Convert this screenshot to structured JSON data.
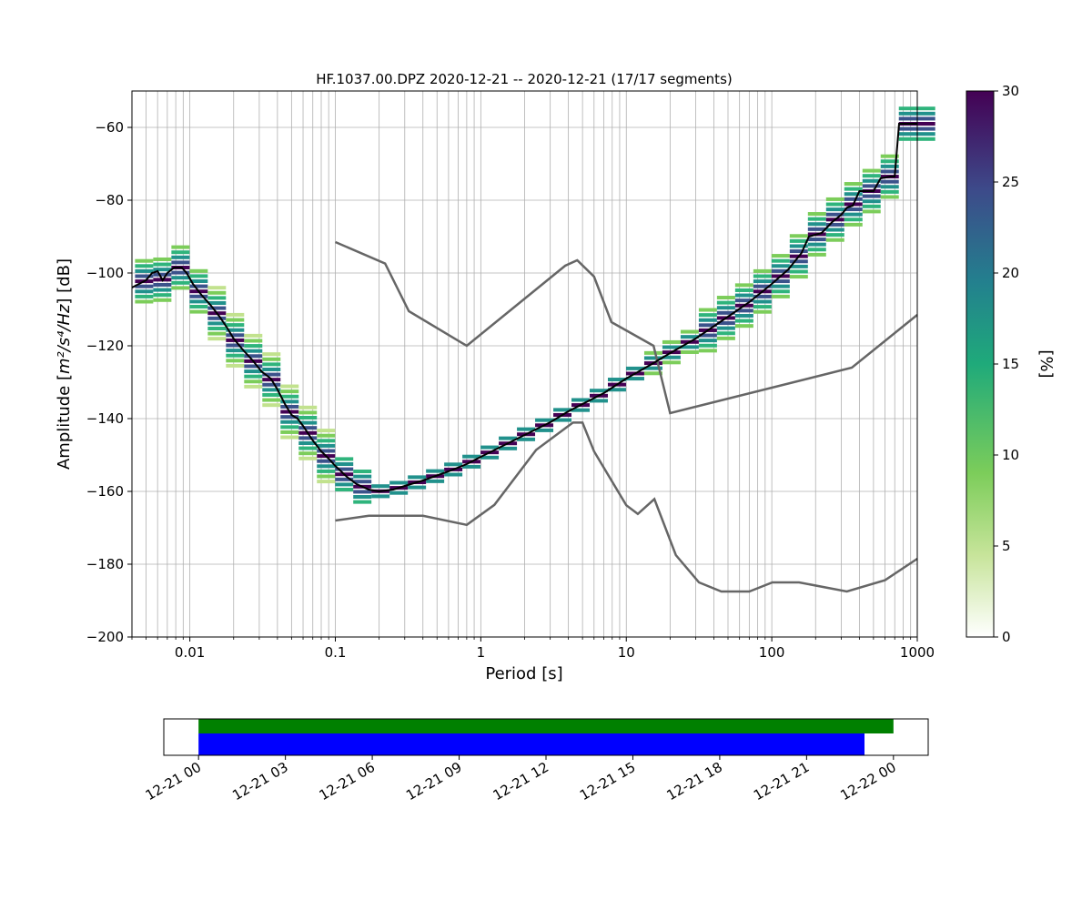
{
  "title": "HF.1037.00.DPZ   2020-12-21 -- 2020-12-21  (17/17 segments)",
  "chart_data": [
    {
      "type": "heatmap",
      "title": "HF.1037.00.DPZ   2020-12-21 -- 2020-12-21  (17/17 segments)",
      "xlabel": "Period [s]",
      "ylabel_prefix": "Amplitude [",
      "ylabel_unit": "m²/s⁴/Hz",
      "ylabel_suffix": "] [dB]",
      "x_scale": "log",
      "xlim": [
        0.004,
        1000
      ],
      "ylim": [
        -200,
        -50
      ],
      "x_tick_labels": [
        "0.01",
        "0.1",
        "1",
        "10",
        "100",
        "1000"
      ],
      "y_tick_labels": [
        "−200",
        "−180",
        "−160",
        "−140",
        "−120",
        "−100",
        "−80",
        "−60"
      ],
      "y_ticks": [
        -200,
        -180,
        -160,
        -140,
        -120,
        -100,
        -80,
        -60
      ],
      "grid": true,
      "colorbar": {
        "label": "[%]",
        "range": [
          0,
          30
        ],
        "tick_labels": [
          "0",
          "5",
          "10",
          "15",
          "20",
          "25",
          "30"
        ],
        "colormap": "viridis_r-like (white → light green → green → teal → blue → dark purple)"
      },
      "mean_curve": {
        "color": "#000000",
        "points": [
          [
            0.004,
            -104
          ],
          [
            0.005,
            -102
          ],
          [
            0.0055,
            -100
          ],
          [
            0.006,
            -99.5
          ],
          [
            0.0065,
            -102
          ],
          [
            0.007,
            -100
          ],
          [
            0.0078,
            -98.5
          ],
          [
            0.0088,
            -98.5
          ],
          [
            0.0095,
            -100
          ],
          [
            0.0105,
            -103
          ],
          [
            0.012,
            -106
          ],
          [
            0.014,
            -109
          ],
          [
            0.016,
            -112
          ],
          [
            0.018,
            -115
          ],
          [
            0.02,
            -118
          ],
          [
            0.023,
            -121
          ],
          [
            0.027,
            -124
          ],
          [
            0.031,
            -127
          ],
          [
            0.036,
            -129
          ],
          [
            0.04,
            -132
          ],
          [
            0.045,
            -136
          ],
          [
            0.05,
            -139
          ],
          [
            0.055,
            -140
          ],
          [
            0.06,
            -142
          ],
          [
            0.07,
            -146
          ],
          [
            0.08,
            -149
          ],
          [
            0.09,
            -151
          ],
          [
            0.1,
            -153
          ],
          [
            0.12,
            -156
          ],
          [
            0.14,
            -158
          ],
          [
            0.17,
            -159.5
          ],
          [
            0.2,
            -160
          ],
          [
            0.25,
            -159.5
          ],
          [
            0.3,
            -158.5
          ],
          [
            0.4,
            -157
          ],
          [
            0.6,
            -154.5
          ],
          [
            0.8,
            -152.5
          ],
          [
            1,
            -150.5
          ],
          [
            1.5,
            -147
          ],
          [
            2,
            -144.5
          ],
          [
            3,
            -141
          ],
          [
            4,
            -138
          ],
          [
            5,
            -136
          ],
          [
            7,
            -133
          ],
          [
            10,
            -129
          ],
          [
            15,
            -125
          ],
          [
            20,
            -122
          ],
          [
            30,
            -118
          ],
          [
            50,
            -112
          ],
          [
            70,
            -108
          ],
          [
            100,
            -103
          ],
          [
            130,
            -99
          ],
          [
            160,
            -94.5
          ],
          [
            180,
            -90
          ],
          [
            220,
            -89
          ],
          [
            260,
            -86
          ],
          [
            300,
            -84
          ],
          [
            330,
            -82
          ],
          [
            360,
            -81.5
          ],
          [
            400,
            -77.5
          ],
          [
            500,
            -77.5
          ],
          [
            560,
            -74
          ],
          [
            650,
            -73.5
          ],
          [
            700,
            -73.5
          ],
          [
            750,
            -59
          ],
          [
            1000,
            -59
          ]
        ]
      },
      "noise_models": [
        {
          "name": "high",
          "color": "#666666",
          "points": [
            [
              0.1,
              -91.5
            ],
            [
              0.22,
              -97.4
            ],
            [
              0.32,
              -110.5
            ],
            [
              0.8,
              -120
            ],
            [
              3.8,
              -98
            ],
            [
              4.6,
              -96.5
            ],
            [
              6,
              -101
            ],
            [
              7.9,
              -113.5
            ],
            [
              15.4,
              -120
            ],
            [
              20,
              -138.5
            ],
            [
              354.8,
              -126
            ],
            [
              1000,
              -111.5
            ]
          ]
        },
        {
          "name": "low",
          "color": "#666666",
          "points": [
            [
              0.1,
              -168
            ],
            [
              0.17,
              -166.7
            ],
            [
              0.4,
              -166.7
            ],
            [
              0.8,
              -169.2
            ],
            [
              1.24,
              -163.7
            ],
            [
              2.4,
              -148.6
            ],
            [
              4.3,
              -141.1
            ],
            [
              5,
              -141.1
            ],
            [
              6,
              -149
            ],
            [
              10,
              -163.8
            ],
            [
              12,
              -166.2
            ],
            [
              15.6,
              -162.1
            ],
            [
              21.9,
              -177.5
            ],
            [
              31.6,
              -185
            ],
            [
              45,
              -187.5
            ],
            [
              70,
              -187.5
            ],
            [
              101,
              -185
            ],
            [
              154,
              -185
            ],
            [
              328,
              -187.5
            ],
            [
              600,
              -184.4
            ],
            [
              1000,
              -178.5
            ]
          ]
        }
      ]
    },
    {
      "type": "bar",
      "orientation": "horizontal",
      "x_tick_labels": [
        "12-21 00",
        "12-21 03",
        "12-21 06",
        "12-21 09",
        "12-21 12",
        "12-21 15",
        "12-21 18",
        "12-21 21",
        "12-22 00"
      ],
      "x_unit": "hours since 12-21 00",
      "xlim": [
        -1.2,
        25.2
      ],
      "series": [
        {
          "color": "#008000",
          "start": 0,
          "end": 24
        },
        {
          "color": "#0000ff",
          "start": 0,
          "end": 23
        }
      ]
    }
  ]
}
